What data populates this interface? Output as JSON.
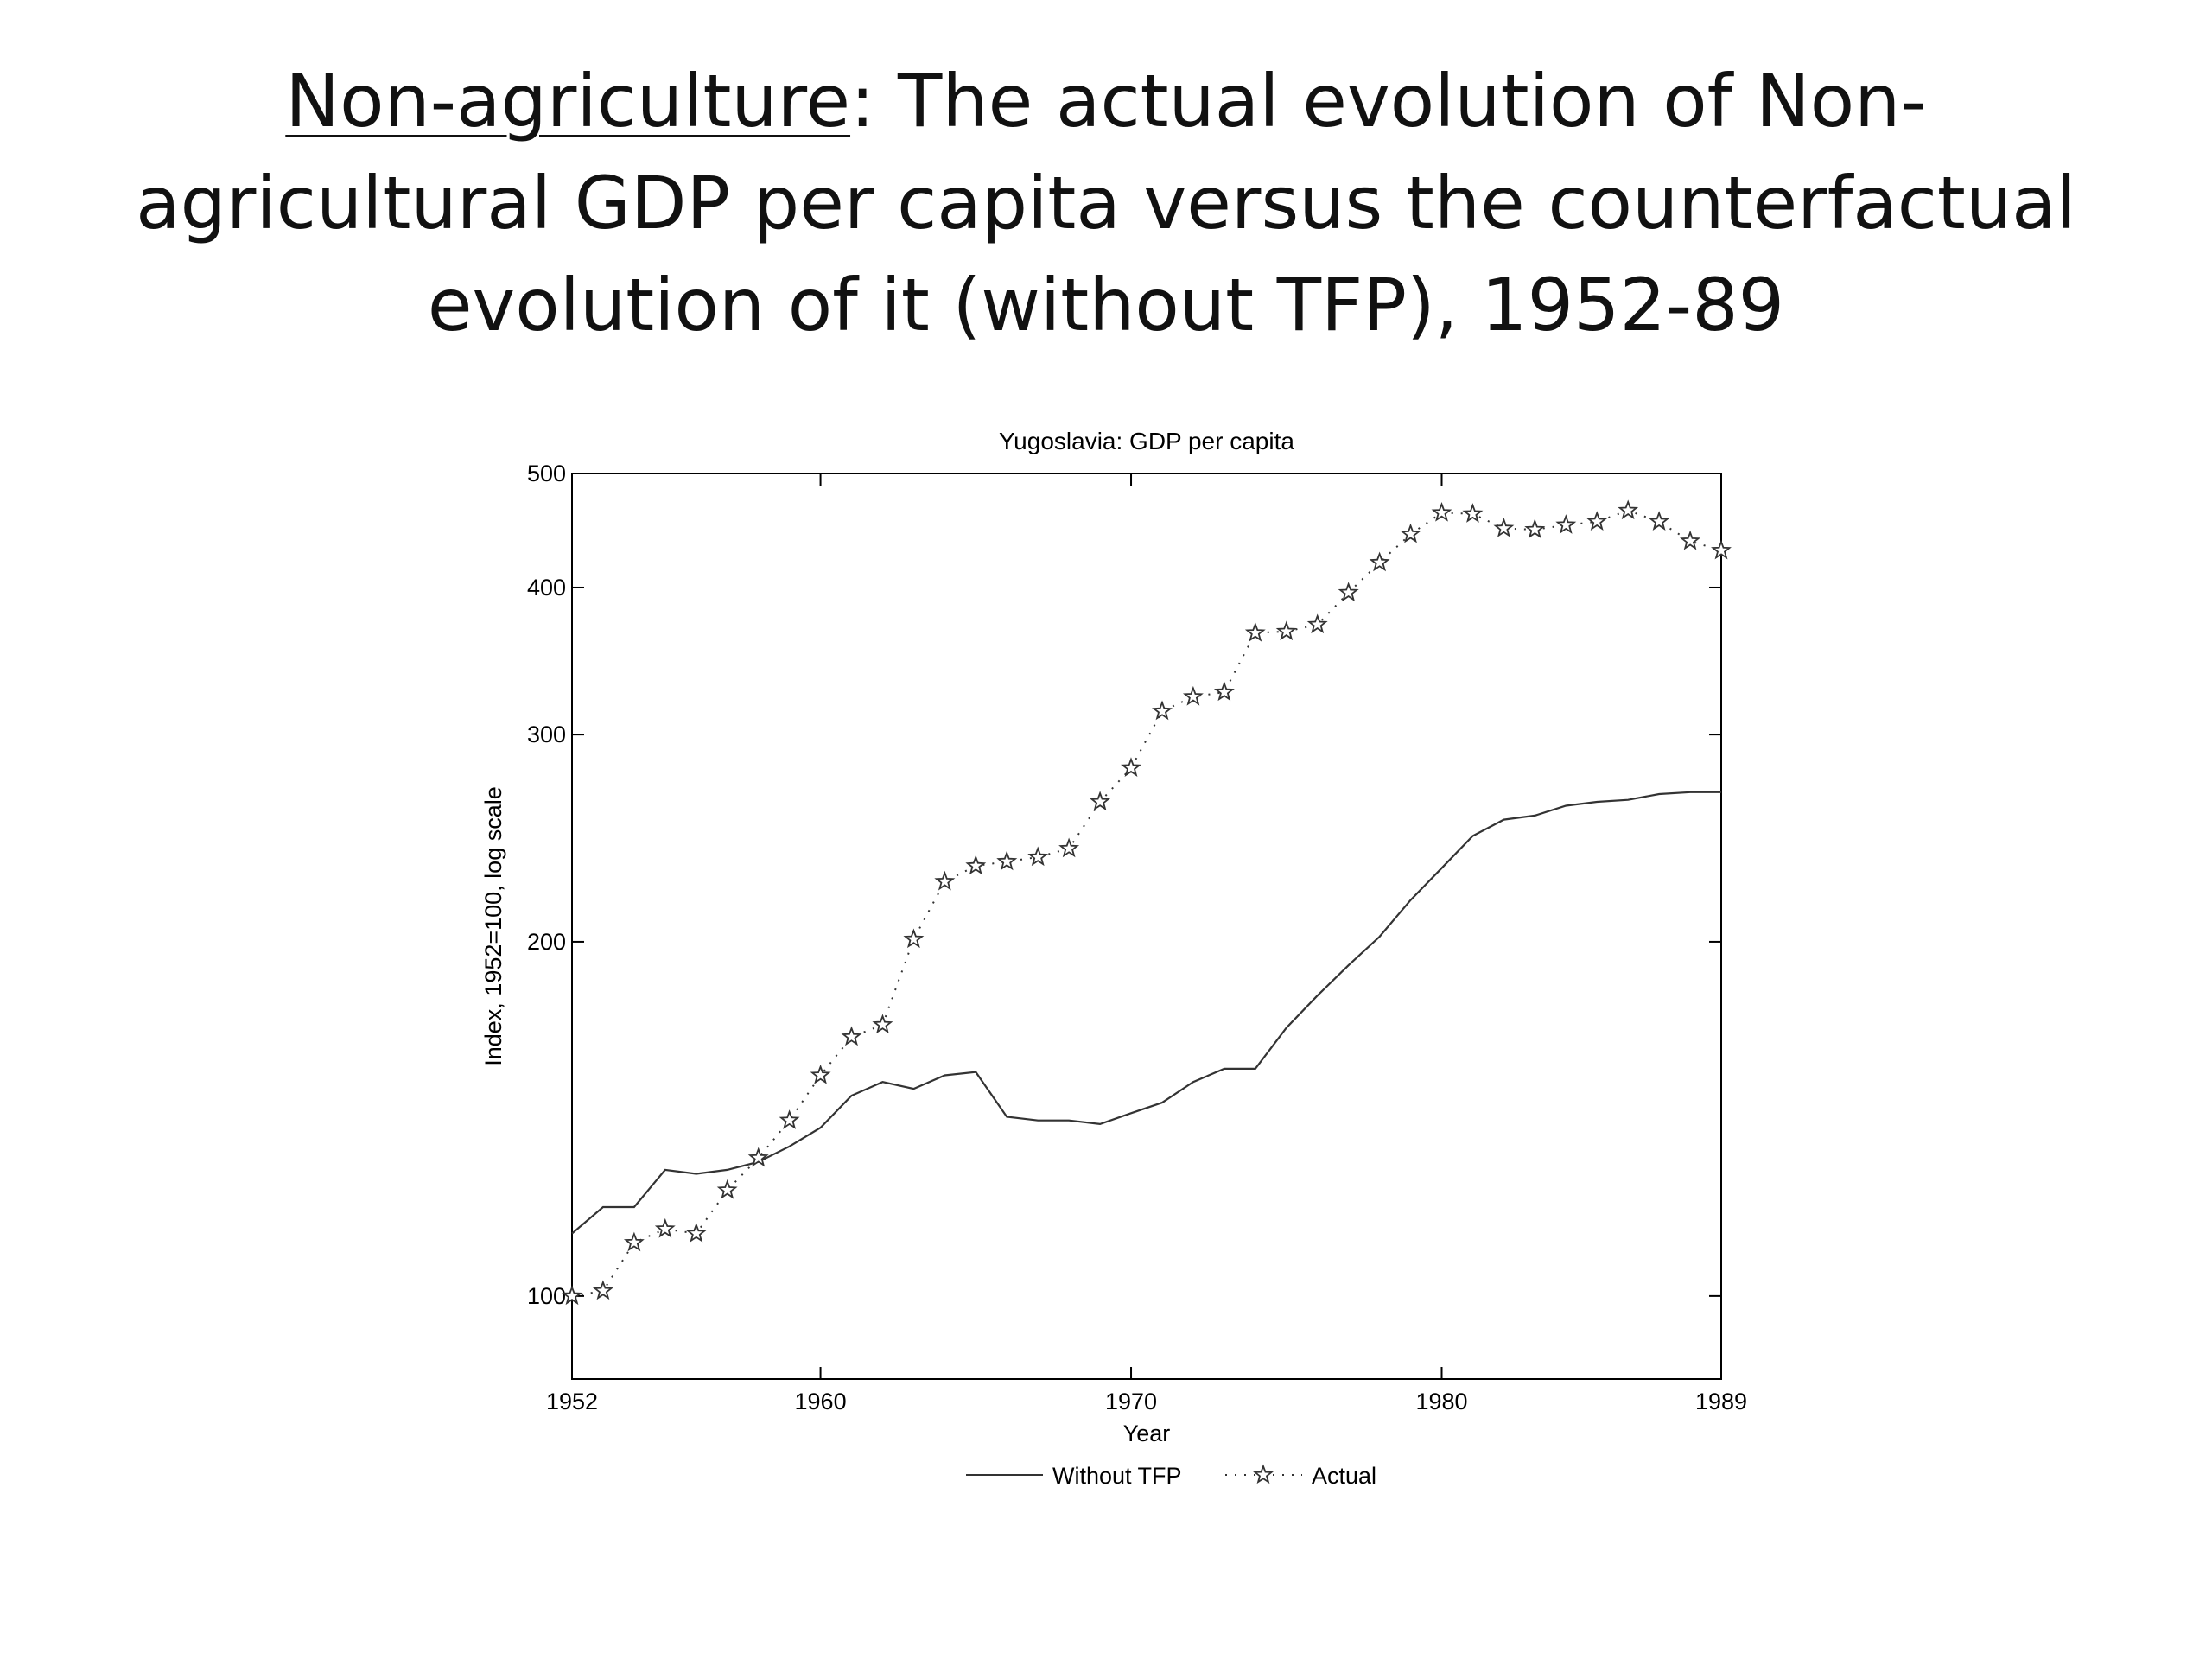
{
  "slide": {
    "title_underlined": "Non-agriculture",
    "title_rest": ": The actual evolution of Non-agricultural GDP per capita versus the counterfactual evolution of it (without TFP), 1952-89"
  },
  "chart_data": {
    "type": "line",
    "title": "Yugoslavia: GDP per capita",
    "xlabel": "Year",
    "ylabel": "Index, 1952=100, log scale",
    "xlim": [
      1952,
      1989
    ],
    "ylim": [
      85,
      500
    ],
    "yscale": "log",
    "grid": false,
    "legend": "bottom-center",
    "x_ticks": [
      1952,
      1960,
      1970,
      1980,
      1989
    ],
    "y_ticks": [
      100,
      200,
      300,
      400,
      500
    ],
    "x": [
      1952,
      1953,
      1954,
      1955,
      1956,
      1957,
      1958,
      1959,
      1960,
      1961,
      1962,
      1963,
      1964,
      1965,
      1966,
      1967,
      1968,
      1969,
      1970,
      1971,
      1972,
      1973,
      1974,
      1975,
      1976,
      1977,
      1978,
      1979,
      1980,
      1981,
      1982,
      1983,
      1984,
      1985,
      1986,
      1987,
      1988,
      1989
    ],
    "series": [
      {
        "name": "Without TFP",
        "style": "solid",
        "color": "#333333",
        "values": [
          113,
          119,
          119,
          128,
          127,
          128,
          130,
          134,
          139,
          148,
          152,
          150,
          154,
          155,
          142,
          141,
          141,
          140,
          143,
          146,
          152,
          156,
          156,
          169,
          180,
          191,
          202,
          217,
          231,
          246,
          254,
          256,
          261,
          263,
          264,
          267,
          268,
          268
        ]
      },
      {
        "name": "Actual",
        "style": "dotted-star",
        "color": "#333333",
        "values": [
          100,
          101,
          111,
          114,
          113,
          123,
          131,
          141,
          154,
          166,
          170,
          201,
          225,
          232,
          234,
          236,
          240,
          263,
          281,
          314,
          323,
          326,
          366,
          367,
          372,
          396,
          420,
          444,
          463,
          462,
          449,
          448,
          452,
          455,
          465,
          455,
          438,
          430
        ]
      }
    ]
  }
}
